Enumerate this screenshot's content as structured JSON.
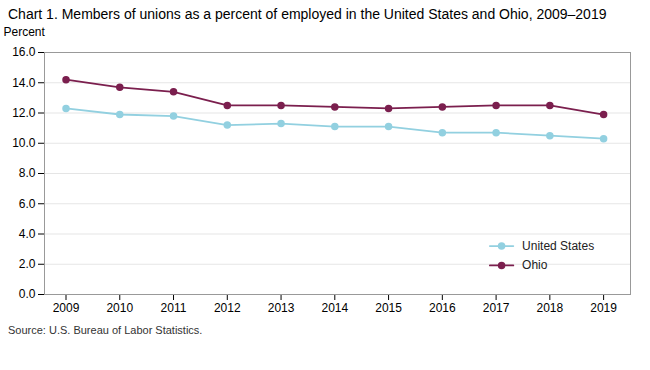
{
  "chart_data": {
    "type": "line",
    "title": "Chart 1. Members of unions as a percent of employed in the United  States and Ohio, 2009–2019",
    "ylabel": "Percent",
    "source": "Source: U.S. Bureau of Labor Statistics.",
    "x": [
      2009,
      2010,
      2011,
      2012,
      2013,
      2014,
      2015,
      2016,
      2017,
      2018,
      2019
    ],
    "series": [
      {
        "name": "United States",
        "color": "#92d0e0",
        "marker": "circle",
        "values": [
          12.3,
          11.9,
          11.8,
          11.2,
          11.3,
          11.1,
          11.1,
          10.7,
          10.7,
          10.5,
          10.3
        ]
      },
      {
        "name": "Ohio",
        "color": "#7b1f4e",
        "marker": "circle",
        "values": [
          14.2,
          13.7,
          13.4,
          12.5,
          12.5,
          12.4,
          12.3,
          12.4,
          12.5,
          12.5,
          11.9
        ]
      }
    ],
    "xlim": [
      2008.6,
      2019.5
    ],
    "xticks": [
      2009,
      2010,
      2011,
      2012,
      2013,
      2014,
      2015,
      2016,
      2017,
      2018,
      2019
    ],
    "ylim": [
      0.0,
      16.0
    ],
    "yticks": [
      {
        "value": 0,
        "label": "0.0"
      },
      {
        "value": 2,
        "label": "2.0"
      },
      {
        "value": 4,
        "label": "4.0"
      },
      {
        "value": 6,
        "label": "6.0"
      },
      {
        "value": 8,
        "label": "8.0"
      },
      {
        "value": 10,
        "label": "10.0"
      },
      {
        "value": 12,
        "label": "12.0"
      },
      {
        "value": 14,
        "label": "14.0"
      },
      {
        "value": 16,
        "label": "16.0"
      }
    ],
    "grid": "y",
    "legend": "lower right"
  }
}
